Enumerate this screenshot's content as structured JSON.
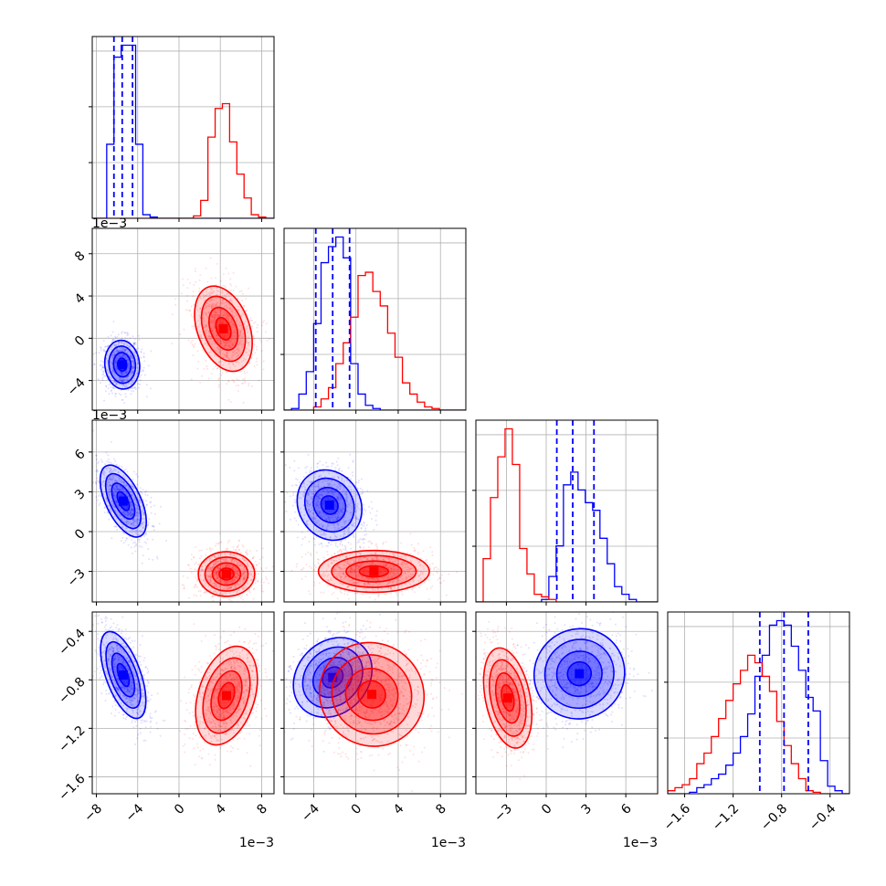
{
  "chart_data": {
    "type": "corner",
    "grid": true,
    "series": [
      {
        "color": "#0000ff"
      },
      {
        "color": "#ff0000"
      }
    ],
    "params": [
      {
        "range": [
          -8.4,
          9.2
        ],
        "ticks": [
          -8,
          -4,
          0,
          4,
          8
        ],
        "tick_labels": [
          "−8",
          "−4",
          "0",
          "4",
          "8"
        ],
        "offset_text": "1e−3"
      },
      {
        "range": [
          -6.8,
          10.4
        ],
        "ticks": [
          -4,
          0,
          4,
          8
        ],
        "tick_labels": [
          "−4",
          "0",
          "4",
          "8"
        ],
        "offset_text": "1e−3"
      },
      {
        "range": [
          -5.3,
          8.4
        ],
        "ticks": [
          -3,
          0,
          3,
          6
        ],
        "tick_labels": [
          "−3",
          "0",
          "3",
          "6"
        ],
        "offset_text": "1e−3"
      },
      {
        "range": [
          -1.74,
          -0.24
        ],
        "ticks": [
          -1.6,
          -1.2,
          -0.8,
          -0.4
        ],
        "tick_labels": [
          "−1.6",
          "−1.2",
          "−0.8",
          "−0.4"
        ],
        "offset_text": ""
      }
    ],
    "marginals": [
      {
        "bins": [
          -8.4,
          -7.7,
          -7.0,
          -6.3,
          -5.6,
          -4.9,
          -4.2,
          -3.5,
          -2.8,
          -2.1,
          -1.4,
          -0.7,
          0.0,
          0.7,
          1.4,
          2.1,
          2.8,
          3.5,
          4.2,
          4.9,
          5.6,
          6.3,
          7.0,
          7.7,
          8.4,
          9.2
        ],
        "counts": [
          [
            0,
            0,
            0.62,
            1.35,
            1.45,
            1.45,
            0.62,
            0.03,
            0.01,
            0,
            0,
            0,
            0,
            0,
            0,
            0,
            0,
            0,
            0,
            0,
            0,
            0,
            0,
            0,
            0
          ],
          [
            0,
            0,
            0,
            0,
            0,
            0,
            0,
            0,
            0,
            0,
            0,
            0,
            0,
            0,
            0.02,
            0.15,
            0.68,
            0.92,
            0.96,
            0.64,
            0.37,
            0.17,
            0.03,
            0.01,
            0
          ]
        ],
        "quantiles": [
          -6.3,
          -5.5,
          -4.5
        ]
      },
      {
        "bins": [
          -6.8,
          -6.1,
          -5.4,
          -4.7,
          -4.0,
          -3.3,
          -2.6,
          -1.9,
          -1.2,
          -0.5,
          0.2,
          0.9,
          1.6,
          2.3,
          3.0,
          3.7,
          4.4,
          5.1,
          5.8,
          6.5,
          7.2,
          7.9,
          8.6,
          9.3,
          10.4
        ],
        "counts": [
          [
            0,
            0.01,
            0.1,
            0.24,
            0.54,
            0.92,
            1.02,
            1.08,
            0.95,
            0.29,
            0.1,
            0.03,
            0.01,
            0,
            0,
            0,
            0,
            0,
            0,
            0,
            0,
            0,
            0,
            0
          ],
          [
            0,
            0,
            0,
            0,
            0.02,
            0.07,
            0.14,
            0.29,
            0.42,
            0.58,
            0.84,
            0.86,
            0.74,
            0.65,
            0.48,
            0.33,
            0.17,
            0.1,
            0.05,
            0.02,
            0.01,
            0,
            0,
            0
          ]
        ],
        "quantiles": [
          -3.8,
          -2.2,
          -0.6
        ]
      },
      {
        "bins": [
          -5.3,
          -4.75,
          -4.2,
          -3.65,
          -3.1,
          -2.55,
          -2.0,
          -1.45,
          -0.9,
          -0.35,
          0.2,
          0.75,
          1.3,
          1.85,
          2.4,
          2.95,
          3.5,
          4.05,
          4.6,
          5.15,
          5.7,
          6.25,
          6.8,
          7.35,
          8.4
        ],
        "counts": [
          [
            0,
            0,
            0,
            0,
            0,
            0,
            0,
            0,
            0,
            0.01,
            0.1,
            0.22,
            0.46,
            0.51,
            0.44,
            0.39,
            0.36,
            0.25,
            0.15,
            0.06,
            0.03,
            0.01,
            0,
            0
          ],
          [
            0,
            0.17,
            0.41,
            0.57,
            0.68,
            0.54,
            0.21,
            0.11,
            0.03,
            0.02,
            0.01,
            0,
            0,
            0,
            0,
            0,
            0,
            0,
            0,
            0,
            0,
            0,
            0,
            0
          ]
        ],
        "quantiles": [
          0.8,
          2.0,
          3.6
        ]
      },
      {
        "bins": [
          -1.74,
          -1.68,
          -1.62,
          -1.56,
          -1.5,
          -1.44,
          -1.38,
          -1.32,
          -1.26,
          -1.2,
          -1.14,
          -1.08,
          -1.02,
          -0.96,
          -0.9,
          -0.84,
          -0.78,
          -0.72,
          -0.66,
          -0.6,
          -0.54,
          -0.48,
          -0.42,
          -0.36,
          -0.3,
          -0.24
        ],
        "counts": [
          [
            0,
            0,
            0,
            0.01,
            0.04,
            0.06,
            0.1,
            0.13,
            0.19,
            0.27,
            0.38,
            0.53,
            0.78,
            0.92,
            1.12,
            1.15,
            1.12,
            0.98,
            0.82,
            0.64,
            0.55,
            0.22,
            0.05,
            0.02,
            0
          ],
          [
            0.02,
            0.04,
            0.06,
            0.1,
            0.2,
            0.27,
            0.38,
            0.5,
            0.62,
            0.73,
            0.82,
            0.92,
            0.87,
            0.78,
            0.68,
            0.48,
            0.32,
            0.2,
            0.1,
            0.02,
            0.01,
            0,
            0,
            0,
            0
          ]
        ],
        "quantiles": [
          -0.98,
          -0.78,
          -0.58
        ]
      }
    ],
    "joint": [
      {
        "row": 1,
        "col": 0,
        "blobs": [
          {
            "series": 0,
            "cx": -5.5,
            "cy": -2.5,
            "sx": 0.8,
            "sy": 1.1,
            "rot": 0.1
          },
          {
            "series": 1,
            "cx": 4.3,
            "cy": 0.9,
            "sx": 1.2,
            "sy": 2.0,
            "rot": 0.35
          }
        ]
      },
      {
        "row": 2,
        "col": 0,
        "blobs": [
          {
            "series": 0,
            "cx": -5.4,
            "cy": 2.3,
            "sx": 0.8,
            "sy": 1.4,
            "rot": 0.45
          },
          {
            "series": 1,
            "cx": 4.6,
            "cy": -3.2,
            "sx": 1.3,
            "sy": 0.8,
            "rot": 0.0
          }
        ]
      },
      {
        "row": 2,
        "col": 1,
        "blobs": [
          {
            "series": 0,
            "cx": -2.5,
            "cy": 2.0,
            "sx": 1.4,
            "sy": 1.3,
            "rot": 0.5
          },
          {
            "series": 1,
            "cx": 1.7,
            "cy": -3.0,
            "sx": 2.5,
            "sy": 0.75,
            "rot": 0.0
          }
        ]
      },
      {
        "row": 3,
        "col": 0,
        "blobs": [
          {
            "series": 0,
            "cx": -5.4,
            "cy": -0.76,
            "sx": 0.8,
            "sy": 0.18,
            "rot": 0.35
          },
          {
            "series": 1,
            "cx": 4.6,
            "cy": -0.93,
            "sx": 1.3,
            "sy": 0.2,
            "rot": -0.3
          }
        ]
      },
      {
        "row": 3,
        "col": 1,
        "blobs": [
          {
            "series": 0,
            "cx": -2.2,
            "cy": -0.78,
            "sx": 1.6,
            "sy": 0.17,
            "rot": -0.75
          },
          {
            "series": 1,
            "cx": 1.5,
            "cy": -0.92,
            "sx": 2.4,
            "sy": 0.2,
            "rot": -0.7
          }
        ]
      },
      {
        "row": 3,
        "col": 2,
        "blobs": [
          {
            "series": 0,
            "cx": 2.5,
            "cy": -0.75,
            "sx": 1.6,
            "sy": 0.18,
            "rot": -0.85
          },
          {
            "series": 1,
            "cx": -2.9,
            "cy": -0.95,
            "sx": 0.8,
            "sy": 0.2,
            "rot": 0.2
          }
        ]
      }
    ]
  }
}
